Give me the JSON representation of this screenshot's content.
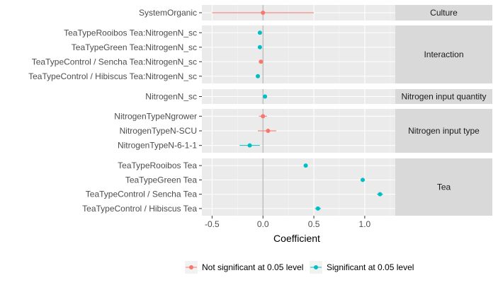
{
  "chart_data": {
    "type": "scatter",
    "subtype": "coefficient-plot-faceted",
    "xlabel": "Coefficient",
    "xlim": [
      -0.6,
      1.3
    ],
    "xticks": [
      -0.5,
      0.0,
      0.5,
      1.0
    ],
    "xtick_labels": [
      "-0.5",
      "0.0",
      "0.5",
      "1.0"
    ],
    "reference_line": 0,
    "legend_position": "bottom",
    "colors": {
      "Not significant at 0.05 level": "#F8766D",
      "Significant at 0.05 level": "#00BFC4"
    },
    "legend": [
      {
        "key": "Not significant at 0.05 level",
        "label": "Not significant at 0.05 level"
      },
      {
        "key": "Significant at 0.05 level",
        "label": "Significant at 0.05 level"
      }
    ],
    "panels": [
      {
        "strip": "Culture",
        "terms": [
          {
            "term": "SystemOrganic",
            "estimate": 0.0,
            "lower": -0.5,
            "upper": 0.5,
            "group": "Not significant at 0.05 level"
          }
        ]
      },
      {
        "strip": "Interaction",
        "terms": [
          {
            "term": "TeaTypeRooibos Tea:NitrogenN_sc",
            "estimate": -0.03,
            "lower": -0.045,
            "upper": -0.015,
            "group": "Significant at 0.05 level"
          },
          {
            "term": "TeaTypeGreen Tea:NitrogenN_sc",
            "estimate": -0.03,
            "lower": -0.045,
            "upper": -0.015,
            "group": "Significant at 0.05 level"
          },
          {
            "term": "TeaTypeControl / Sencha Tea:NitrogenN_sc",
            "estimate": -0.02,
            "lower": -0.04,
            "upper": 0.0,
            "group": "Not significant at 0.05 level"
          },
          {
            "term": "TeaTypeControl / Hibiscus Tea:NitrogenN_sc",
            "estimate": -0.05,
            "lower": -0.07,
            "upper": -0.03,
            "group": "Significant at 0.05 level"
          }
        ]
      },
      {
        "strip": "Nitrogen input quantity",
        "terms": [
          {
            "term": "NitrogenN_sc",
            "estimate": 0.02,
            "lower": 0.01,
            "upper": 0.03,
            "group": "Significant at 0.05 level"
          }
        ]
      },
      {
        "strip": "Nitrogen input type",
        "terms": [
          {
            "term": "NitrogenTypeNgrower",
            "estimate": 0.0,
            "lower": -0.04,
            "upper": 0.04,
            "group": "Not significant at 0.05 level"
          },
          {
            "term": "NitrogenTypeN-SCU",
            "estimate": 0.05,
            "lower": -0.05,
            "upper": 0.13,
            "group": "Not significant at 0.05 level"
          },
          {
            "term": "NitrogenTypeN-6-1-1",
            "estimate": -0.13,
            "lower": -0.23,
            "upper": -0.03,
            "group": "Significant at 0.05 level"
          }
        ]
      },
      {
        "strip": "Tea",
        "terms": [
          {
            "term": "TeaTypeRooibos Tea",
            "estimate": 0.42,
            "lower": 0.4,
            "upper": 0.44,
            "group": "Significant at 0.05 level"
          },
          {
            "term": "TeaTypeGreen Tea",
            "estimate": 0.98,
            "lower": 0.96,
            "upper": 1.0,
            "group": "Significant at 0.05 level"
          },
          {
            "term": "TeaTypeControl / Sencha Tea",
            "estimate": 1.15,
            "lower": 1.12,
            "upper": 1.18,
            "group": "Significant at 0.05 level"
          },
          {
            "term": "TeaTypeControl / Hibiscus Tea",
            "estimate": 0.54,
            "lower": 0.51,
            "upper": 0.57,
            "group": "Significant at 0.05 level"
          }
        ]
      }
    ]
  }
}
